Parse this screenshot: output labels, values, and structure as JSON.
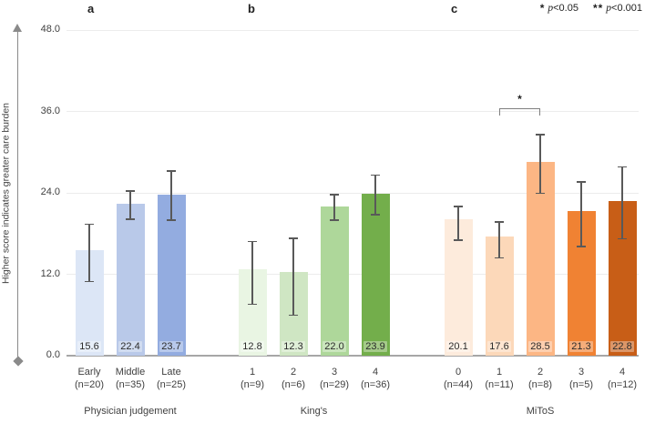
{
  "figure": {
    "panels": [
      {
        "letter": "a"
      },
      {
        "letter": "b"
      },
      {
        "letter": "c"
      }
    ],
    "legend": [
      {
        "symbol": "*",
        "var": "p",
        "threshold": "<0.05"
      },
      {
        "symbol": "**",
        "var": "p",
        "threshold": "<0.001"
      }
    ]
  },
  "chart_data": {
    "type": "bar",
    "title": "",
    "ylabel": "Higher score indicates greater care burden",
    "xlabel": "",
    "ylim": [
      0,
      48
    ],
    "yticks": [
      "0.0",
      "12.0",
      "24.0",
      "36.0",
      "48.0"
    ],
    "grid": true,
    "groups": [
      {
        "label": "Physician judgement",
        "bars": [
          {
            "category": "Early",
            "n": "(n=20)",
            "value": 15.6,
            "err_high": 19.4,
            "err_low": 10.9,
            "color": "#dce6f6"
          },
          {
            "category": "Middle",
            "n": "(n=35)",
            "value": 22.4,
            "err_high": 24.3,
            "err_low": 20.1,
            "color": "#b9c9e9"
          },
          {
            "category": "Late",
            "n": "(n=25)",
            "value": 23.7,
            "err_high": 27.2,
            "err_low": 20.0,
            "color": "#93ace0"
          }
        ]
      },
      {
        "label": "King's",
        "bars": [
          {
            "category": "1",
            "n": "(n=9)",
            "value": 12.8,
            "err_high": 16.8,
            "err_low": 7.6,
            "color": "#e9f5e3"
          },
          {
            "category": "2",
            "n": "(n=6)",
            "value": 12.3,
            "err_high": 17.3,
            "err_low": 6.0,
            "color": "#cfe6c3"
          },
          {
            "category": "3",
            "n": "(n=29)",
            "value": 22.0,
            "err_high": 23.7,
            "err_low": 20.0,
            "color": "#aed79a"
          },
          {
            "category": "4",
            "n": "(n=36)",
            "value": 23.9,
            "err_high": 26.6,
            "err_low": 20.8,
            "color": "#73ae4b"
          }
        ]
      },
      {
        "label": "MiToS",
        "bars": [
          {
            "category": "0",
            "n": "(n=44)",
            "value": 20.1,
            "err_high": 22.0,
            "err_low": 17.0,
            "color": "#fdebdc"
          },
          {
            "category": "1",
            "n": "(n=11)",
            "value": 17.6,
            "err_high": 19.7,
            "err_low": 14.4,
            "color": "#fcd8b9"
          },
          {
            "category": "2",
            "n": "(n=8)",
            "value": 28.5,
            "err_high": 32.6,
            "err_low": 23.9,
            "color": "#fcb684"
          },
          {
            "category": "3",
            "n": "(n=5)",
            "value": 21.3,
            "err_high": 25.6,
            "err_low": 16.1,
            "color": "#f08233"
          },
          {
            "category": "4",
            "n": "(n=12)",
            "value": 22.8,
            "err_high": 27.8,
            "err_low": 17.2,
            "color": "#c85e17"
          }
        ]
      }
    ],
    "significance": {
      "symbol": "*",
      "group_index": 2,
      "bar_from": 1,
      "bar_to": 2
    },
    "legend_position": "top-right",
    "colors": {
      "gridline": "#ececec",
      "baseline": "#a6a6a6",
      "error_bar": "#595959",
      "axis_arrow": "#8a8a8a",
      "text": "#404040"
    }
  }
}
